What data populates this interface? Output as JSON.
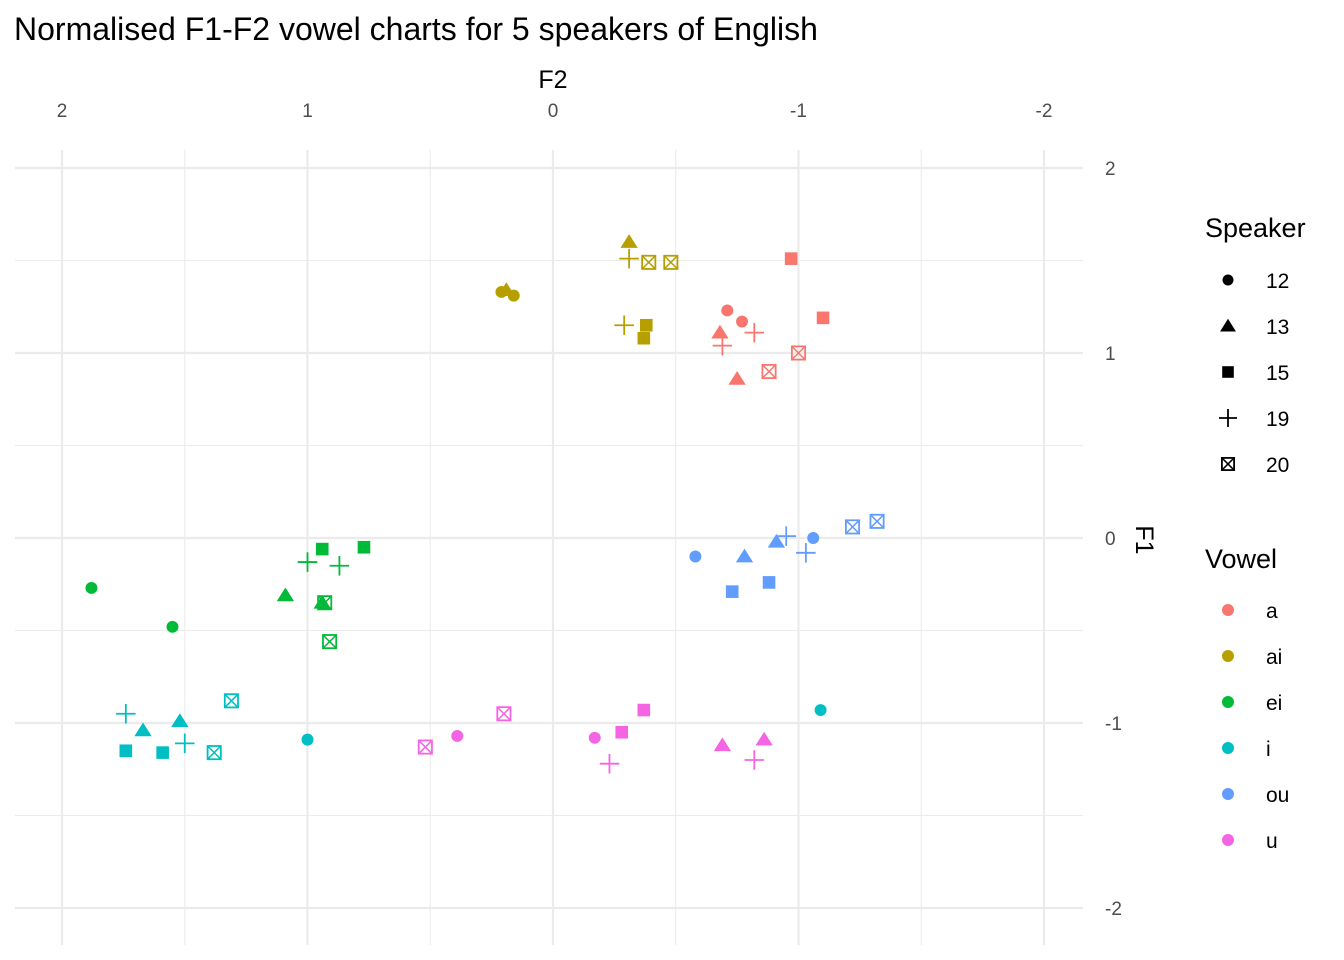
{
  "chart_data": {
    "type": "scatter",
    "title": "Normalised F1-F2 vowel charts for 5 speakers of English",
    "xlabel": "F2",
    "ylabel": "F1",
    "x_reversed": true,
    "y_reversed": true,
    "x_axis_position": "top",
    "y_axis_position": "right",
    "xlim": [
      -2.0,
      2.0
    ],
    "ylim": [
      -2.0,
      2.0
    ],
    "x_ticks": [
      2,
      1,
      0,
      -1,
      -2
    ],
    "x_tick_labels": [
      "2",
      "1",
      "0",
      "-1",
      "-2"
    ],
    "y_ticks": [
      -2,
      -1,
      0,
      1,
      2
    ],
    "y_tick_labels": [
      "-2",
      "-1",
      "0",
      "1",
      "2"
    ],
    "grid": true,
    "legend_placement": "right",
    "shape_legend": {
      "title": "Speaker",
      "items": [
        {
          "label": "12",
          "shape": "circle"
        },
        {
          "label": "13",
          "shape": "triangle"
        },
        {
          "label": "15",
          "shape": "square"
        },
        {
          "label": "19",
          "shape": "plus"
        },
        {
          "label": "20",
          "shape": "boxx"
        }
      ]
    },
    "color_legend": {
      "title": "Vowel",
      "items": [
        {
          "label": "a",
          "color": "#F8766D"
        },
        {
          "label": "ai",
          "color": "#B79F00"
        },
        {
          "label": "ei",
          "color": "#00BA38"
        },
        {
          "label": "i",
          "color": "#00BFC4"
        },
        {
          "label": "ou",
          "color": "#619CFF"
        },
        {
          "label": "u",
          "color": "#F564E3"
        }
      ]
    },
    "points": [
      {
        "vowel": "a",
        "speaker": "12",
        "x": -0.71,
        "y": 1.23
      },
      {
        "vowel": "a",
        "speaker": "12",
        "x": -0.77,
        "y": 1.17
      },
      {
        "vowel": "a",
        "speaker": "13",
        "x": -0.75,
        "y": 0.86
      },
      {
        "vowel": "a",
        "speaker": "13",
        "x": -0.68,
        "y": 1.11
      },
      {
        "vowel": "a",
        "speaker": "15",
        "x": -1.1,
        "y": 1.19
      },
      {
        "vowel": "a",
        "speaker": "15",
        "x": -0.97,
        "y": 1.51
      },
      {
        "vowel": "a",
        "speaker": "19",
        "x": -0.69,
        "y": 1.04
      },
      {
        "vowel": "a",
        "speaker": "19",
        "x": -0.82,
        "y": 1.11
      },
      {
        "vowel": "a",
        "speaker": "20",
        "x": -0.88,
        "y": 0.9
      },
      {
        "vowel": "a",
        "speaker": "20",
        "x": -1.0,
        "y": 1.0
      },
      {
        "vowel": "ai",
        "speaker": "12",
        "x": 0.21,
        "y": 1.33
      },
      {
        "vowel": "ai",
        "speaker": "12",
        "x": 0.16,
        "y": 1.31
      },
      {
        "vowel": "ai",
        "speaker": "13",
        "x": 0.19,
        "y": 1.34
      },
      {
        "vowel": "ai",
        "speaker": "13",
        "x": -0.31,
        "y": 1.6
      },
      {
        "vowel": "ai",
        "speaker": "15",
        "x": -0.37,
        "y": 1.08
      },
      {
        "vowel": "ai",
        "speaker": "15",
        "x": -0.38,
        "y": 1.15
      },
      {
        "vowel": "ai",
        "speaker": "19",
        "x": -0.29,
        "y": 1.15
      },
      {
        "vowel": "ai",
        "speaker": "19",
        "x": -0.31,
        "y": 1.51
      },
      {
        "vowel": "ai",
        "speaker": "20",
        "x": -0.39,
        "y": 1.49
      },
      {
        "vowel": "ai",
        "speaker": "20",
        "x": -0.48,
        "y": 1.49
      },
      {
        "vowel": "ei",
        "speaker": "12",
        "x": 1.88,
        "y": -0.27
      },
      {
        "vowel": "ei",
        "speaker": "12",
        "x": 1.55,
        "y": -0.48
      },
      {
        "vowel": "ei",
        "speaker": "13",
        "x": 1.09,
        "y": -0.31
      },
      {
        "vowel": "ei",
        "speaker": "13",
        "x": 0.94,
        "y": -0.35
      },
      {
        "vowel": "ei",
        "speaker": "15",
        "x": 0.94,
        "y": -0.06
      },
      {
        "vowel": "ei",
        "speaker": "15",
        "x": 0.77,
        "y": -0.05
      },
      {
        "vowel": "ei",
        "speaker": "19",
        "x": 1.0,
        "y": -0.13
      },
      {
        "vowel": "ei",
        "speaker": "19",
        "x": 0.87,
        "y": -0.15
      },
      {
        "vowel": "ei",
        "speaker": "20",
        "x": 0.91,
        "y": -0.56
      },
      {
        "vowel": "ei",
        "speaker": "20",
        "x": 0.93,
        "y": -0.35
      },
      {
        "vowel": "i",
        "speaker": "12",
        "x": 1.0,
        "y": -1.09
      },
      {
        "vowel": "i",
        "speaker": "12",
        "x": -1.09,
        "y": -0.93
      },
      {
        "vowel": "i",
        "speaker": "13",
        "x": 1.67,
        "y": -1.04
      },
      {
        "vowel": "i",
        "speaker": "13",
        "x": 1.52,
        "y": -0.99
      },
      {
        "vowel": "i",
        "speaker": "15",
        "x": 1.74,
        "y": -1.15
      },
      {
        "vowel": "i",
        "speaker": "15",
        "x": 1.59,
        "y": -1.16
      },
      {
        "vowel": "i",
        "speaker": "19",
        "x": 1.74,
        "y": -0.95
      },
      {
        "vowel": "i",
        "speaker": "19",
        "x": 1.5,
        "y": -1.11
      },
      {
        "vowel": "i",
        "speaker": "20",
        "x": 1.38,
        "y": -1.16
      },
      {
        "vowel": "i",
        "speaker": "20",
        "x": 1.31,
        "y": -0.88
      },
      {
        "vowel": "ou",
        "speaker": "12",
        "x": -0.58,
        "y": -0.1
      },
      {
        "vowel": "ou",
        "speaker": "12",
        "x": -1.06,
        "y": 0.0
      },
      {
        "vowel": "ou",
        "speaker": "13",
        "x": -0.78,
        "y": -0.1
      },
      {
        "vowel": "ou",
        "speaker": "13",
        "x": -0.91,
        "y": -0.02
      },
      {
        "vowel": "ou",
        "speaker": "15",
        "x": -0.73,
        "y": -0.29
      },
      {
        "vowel": "ou",
        "speaker": "15",
        "x": -0.88,
        "y": -0.24
      },
      {
        "vowel": "ou",
        "speaker": "19",
        "x": -1.03,
        "y": -0.08
      },
      {
        "vowel": "ou",
        "speaker": "19",
        "x": -0.95,
        "y": 0.01
      },
      {
        "vowel": "ou",
        "speaker": "20",
        "x": -1.22,
        "y": 0.06
      },
      {
        "vowel": "ou",
        "speaker": "20",
        "x": -1.32,
        "y": 0.09
      },
      {
        "vowel": "u",
        "speaker": "12",
        "x": 0.39,
        "y": -1.07
      },
      {
        "vowel": "u",
        "speaker": "12",
        "x": -0.17,
        "y": -1.08
      },
      {
        "vowel": "u",
        "speaker": "13",
        "x": -0.69,
        "y": -1.12
      },
      {
        "vowel": "u",
        "speaker": "13",
        "x": -0.86,
        "y": -1.09
      },
      {
        "vowel": "u",
        "speaker": "15",
        "x": -0.28,
        "y": -1.05
      },
      {
        "vowel": "u",
        "speaker": "15",
        "x": -0.37,
        "y": -0.93
      },
      {
        "vowel": "u",
        "speaker": "19",
        "x": -0.23,
        "y": -1.22
      },
      {
        "vowel": "u",
        "speaker": "19",
        "x": -0.82,
        "y": -1.2
      },
      {
        "vowel": "u",
        "speaker": "20",
        "x": 0.52,
        "y": -1.13
      },
      {
        "vowel": "u",
        "speaker": "20",
        "x": 0.2,
        "y": -0.95
      }
    ]
  }
}
